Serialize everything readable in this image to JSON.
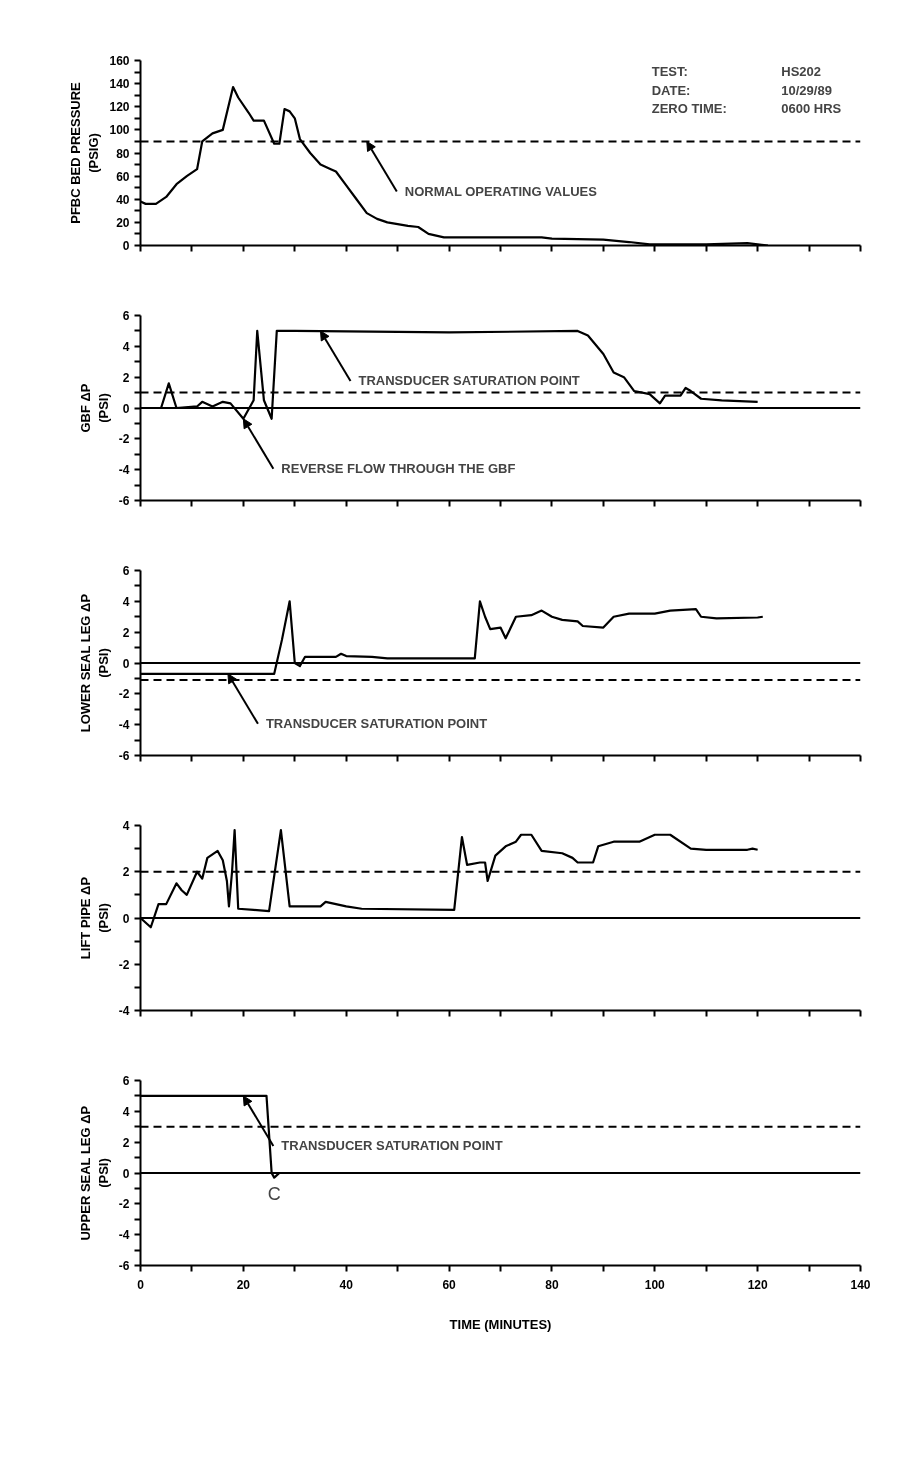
{
  "chart_data": [
    {
      "type": "line",
      "ylabel": "PFBC BED PRESSURE\n(PSIG)",
      "xlim": [
        0,
        140
      ],
      "ylim": [
        0,
        160
      ],
      "xticks": [
        0,
        {
          "value": 10,
          "label": null
        },
        20,
        {
          "value": 30,
          "label": null
        },
        40,
        {
          "value": 50,
          "label": null
        },
        60,
        {
          "value": 70,
          "label": null
        },
        80,
        {
          "value": 90,
          "label": null
        },
        100,
        {
          "value": 110,
          "label": null
        },
        120,
        {
          "value": 130,
          "label": null
        },
        140
      ],
      "yticks": [
        0,
        {
          "value": 10,
          "label": null
        },
        20,
        {
          "value": 30,
          "label": null
        },
        40,
        {
          "value": 50,
          "label": null
        },
        60,
        {
          "value": 70,
          "label": null
        },
        80,
        {
          "value": 90,
          "label": null
        },
        100,
        {
          "value": 110,
          "label": null
        },
        120,
        {
          "value": 130,
          "label": null
        },
        140,
        {
          "value": 150,
          "label": null
        },
        160
      ],
      "tick_labels": "y",
      "grid": false,
      "line_style": "solid",
      "marker": "none",
      "series": [
        {
          "color": "#000000",
          "x": [
            0,
            1,
            3,
            5,
            7,
            9,
            11,
            12,
            14,
            16,
            18,
            19,
            21,
            22,
            24,
            26,
            27,
            28,
            29,
            30,
            31,
            33,
            35,
            37,
            38,
            40,
            42,
            44,
            46,
            48,
            52,
            54,
            56,
            59,
            78,
            80,
            90,
            95,
            99,
            110,
            118,
            120,
            122
          ],
          "values": [
            38,
            36,
            36,
            42,
            53,
            60,
            66,
            90,
            97,
            100,
            137,
            128,
            115,
            108,
            108,
            88,
            88,
            118,
            116,
            110,
            92,
            80,
            70,
            66,
            64,
            52,
            40,
            28,
            23,
            20,
            17,
            16,
            10,
            7,
            7,
            6,
            5,
            3,
            1,
            1,
            2,
            1,
            0
          ]
        }
      ],
      "ref_lines": [
        {
          "axis": "y",
          "value": 90,
          "label": null,
          "line_style": "dashed",
          "color": "#000000"
        }
      ],
      "annotations": [
        {
          "text": "NORMAL OPERATING VALUES",
          "x": 44,
          "y": 90
        },
        "TEST:",
        "HS202",
        "DATE:",
        "10/29/89",
        "ZERO TIME:",
        "0600 HRS"
      ]
    },
    {
      "type": "line",
      "ylabel": "GBF ΔP\n(PSI)",
      "xlim": [
        0,
        140
      ],
      "ylim": [
        -6,
        6
      ],
      "xticks": [
        0,
        {
          "value": 10,
          "label": null
        },
        20,
        {
          "value": 30,
          "label": null
        },
        40,
        {
          "value": 50,
          "label": null
        },
        60,
        {
          "value": 70,
          "label": null
        },
        80,
        {
          "value": 90,
          "label": null
        },
        100,
        {
          "value": 110,
          "label": null
        },
        120,
        {
          "value": 130,
          "label": null
        },
        140
      ],
      "yticks": [
        -6,
        {
          "value": -5,
          "label": null
        },
        -4,
        {
          "value": -3,
          "label": null
        },
        -2,
        {
          "value": -1,
          "label": null
        },
        0,
        {
          "value": 1,
          "label": null
        },
        2,
        {
          "value": 3,
          "label": null
        },
        4,
        {
          "value": 5,
          "label": null
        },
        6
      ],
      "tick_labels": "y",
      "grid": false,
      "line_style": "solid",
      "marker": "none",
      "series": [
        {
          "color": "#000000",
          "x": [
            0,
            4,
            5.5,
            7,
            11,
            12,
            14,
            16,
            17.5,
            20,
            22,
            22.7,
            24,
            25.5,
            26.5,
            30,
            60,
            85,
            87,
            90,
            92,
            94,
            96,
            99,
            101,
            102,
            105,
            106,
            107,
            109,
            113,
            120
          ],
          "values": [
            0,
            0,
            1.6,
            0,
            0.1,
            0.4,
            0.1,
            0.4,
            0.3,
            -0.7,
            0.5,
            5,
            0.5,
            -0.7,
            5,
            5,
            4.9,
            5,
            4.7,
            3.5,
            2.3,
            2,
            1.1,
            0.9,
            0.3,
            0.8,
            0.8,
            1.3,
            1.1,
            0.6,
            0.5,
            0.4
          ]
        }
      ],
      "ref_lines": [
        {
          "axis": "y",
          "value": 0,
          "label": null,
          "line_style": "solid",
          "color": "#000000"
        },
        {
          "axis": "y",
          "value": 1,
          "label": null,
          "line_style": "dashed",
          "color": "#000000"
        }
      ],
      "annotations": [
        {
          "text": "TRANSDUCER SATURATION POINT",
          "x": 35,
          "y": 5
        },
        {
          "text": "REVERSE FLOW THROUGH THE GBF",
          "x": 20,
          "y": -0.7
        }
      ]
    },
    {
      "type": "line",
      "ylabel": "LOWER SEAL LEG ΔP\n(PSI)",
      "xlim": [
        0,
        140
      ],
      "ylim": [
        -6,
        6
      ],
      "xticks": [
        0,
        {
          "value": 10,
          "label": null
        },
        20,
        {
          "value": 30,
          "label": null
        },
        40,
        {
          "value": 50,
          "label": null
        },
        60,
        {
          "value": 70,
          "label": null
        },
        80,
        {
          "value": 90,
          "label": null
        },
        100,
        {
          "value": 110,
          "label": null
        },
        120,
        {
          "value": 130,
          "label": null
        },
        140
      ],
      "yticks": [
        -6,
        {
          "value": -5,
          "label": null
        },
        -4,
        {
          "value": -3,
          "label": null
        },
        -2,
        {
          "value": -1,
          "label": null
        },
        0,
        {
          "value": 1,
          "label": null
        },
        2,
        {
          "value": 3,
          "label": null
        },
        4,
        {
          "value": 5,
          "label": null
        },
        6
      ],
      "tick_labels": "y",
      "grid": false,
      "line_style": "solid",
      "marker": "none",
      "series": [
        {
          "color": "#000000",
          "x": [
            0,
            26,
            27.5,
            29,
            30,
            31,
            32,
            38,
            39,
            40,
            45,
            48,
            65,
            66,
            67,
            68,
            70,
            71,
            73,
            76,
            78,
            80,
            82,
            85,
            86,
            90,
            92,
            95,
            100,
            103,
            108,
            109,
            112,
            120,
            121
          ],
          "values": [
            -0.7,
            -0.7,
            1.5,
            4,
            0,
            -0.2,
            0.4,
            0.4,
            0.6,
            0.45,
            0.4,
            0.3,
            0.3,
            4,
            3,
            2.2,
            2.3,
            1.6,
            3,
            3.1,
            3.4,
            3,
            2.8,
            2.7,
            2.4,
            2.3,
            3,
            3.2,
            3.2,
            3.4,
            3.5,
            3,
            2.9,
            2.95,
            3
          ]
        }
      ],
      "ref_lines": [
        {
          "axis": "y",
          "value": 0,
          "label": null,
          "line_style": "solid",
          "color": "#000000"
        },
        {
          "axis": "y",
          "value": -1.1,
          "label": null,
          "line_style": "dashed",
          "color": "#000000"
        }
      ],
      "annotations": [
        {
          "text": "TRANSDUCER SATURATION POINT",
          "x": 17,
          "y": -0.7
        }
      ]
    },
    {
      "type": "line",
      "ylabel": "LIFT PIPE ΔP\n(PSI)",
      "xlim": [
        0,
        140
      ],
      "ylim": [
        -4,
        4
      ],
      "xticks": [
        0,
        {
          "value": 10,
          "label": null
        },
        20,
        {
          "value": 30,
          "label": null
        },
        40,
        {
          "value": 50,
          "label": null
        },
        60,
        {
          "value": 70,
          "label": null
        },
        80,
        {
          "value": 90,
          "label": null
        },
        100,
        {
          "value": 110,
          "label": null
        },
        120,
        {
          "value": 130,
          "label": null
        },
        140
      ],
      "yticks": [
        -4,
        {
          "value": -3,
          "label": null
        },
        -2,
        {
          "value": -1,
          "label": null
        },
        0,
        {
          "value": 1,
          "label": null
        },
        2,
        {
          "value": 3,
          "label": null
        },
        4
      ],
      "tick_labels": "y",
      "grid": false,
      "line_style": "solid",
      "marker": "none",
      "series": [
        {
          "color": "#000000",
          "x": [
            0,
            2,
            3.5,
            5,
            7,
            8,
            9,
            11,
            12,
            13,
            15,
            16,
            16.8,
            17.2,
            17.8,
            18.3,
            19,
            22,
            25,
            27.3,
            29,
            35,
            36,
            38,
            40,
            43,
            61,
            62.5,
            63.5,
            66,
            67,
            67.5,
            69,
            71,
            73,
            74,
            76,
            78,
            82,
            84,
            85,
            88,
            89,
            92,
            97,
            100,
            103,
            107,
            110,
            118,
            119,
            120
          ],
          "values": [
            0,
            -0.4,
            0.6,
            0.6,
            1.5,
            1.2,
            1.0,
            2.0,
            1.7,
            2.6,
            2.9,
            2.5,
            1.6,
            0.5,
            2,
            3.8,
            0.4,
            0.35,
            0.3,
            3.8,
            0.5,
            0.5,
            0.7,
            0.6,
            0.5,
            0.4,
            0.35,
            3.5,
            2.3,
            2.4,
            2.4,
            1.6,
            2.7,
            3.1,
            3.3,
            3.6,
            3.6,
            2.9,
            2.8,
            2.6,
            2.4,
            2.4,
            3.1,
            3.3,
            3.3,
            3.6,
            3.6,
            3.0,
            2.95,
            2.95,
            3.0,
            2.95
          ]
        }
      ],
      "ref_lines": [
        {
          "axis": "y",
          "value": 0,
          "label": null,
          "line_style": "solid",
          "color": "#000000"
        },
        {
          "axis": "y",
          "value": 2,
          "label": null,
          "line_style": "dashed",
          "color": "#000000"
        }
      ]
    },
    {
      "type": "line",
      "ylabel": "UPPER SEAL LEG ΔP\n(PSI)",
      "xlabel": "TIME (MINUTES)",
      "xlim": [
        0,
        140
      ],
      "ylim": [
        -6,
        6
      ],
      "xticks": [
        0,
        {
          "value": 10,
          "label": null
        },
        20,
        {
          "value": 30,
          "label": null
        },
        40,
        {
          "value": 50,
          "label": null
        },
        60,
        {
          "value": 70,
          "label": null
        },
        80,
        {
          "value": 90,
          "label": null
        },
        100,
        {
          "value": 110,
          "label": null
        },
        120,
        {
          "value": 130,
          "label": null
        },
        140
      ],
      "yticks": [
        -6,
        {
          "value": -5,
          "label": null
        },
        -4,
        {
          "value": -3,
          "label": null
        },
        -2,
        {
          "value": -1,
          "label": null
        },
        0,
        {
          "value": 1,
          "label": null
        },
        2,
        {
          "value": 3,
          "label": null
        },
        4,
        {
          "value": 5,
          "label": null
        },
        6
      ],
      "grid": false,
      "line_style": "solid",
      "marker": "none",
      "series": [
        {
          "color": "#000000",
          "x": [
            0,
            24.5,
            25.5,
            26,
            27,
            29
          ],
          "values": [
            5,
            5,
            0,
            -0.3,
            0,
            0
          ]
        }
      ],
      "ref_lines": [
        {
          "axis": "y",
          "value": 0,
          "label": null,
          "line_style": "solid",
          "color": "#000000"
        },
        {
          "axis": "y",
          "value": 3,
          "label": null,
          "line_style": "dashed",
          "color": "#000000"
        }
      ],
      "annotations": [
        {
          "text": "TRANSDUCER SATURATION POINT",
          "x": 20,
          "y": 5
        },
        {
          "text": "C",
          "x": 26,
          "y": -0.3
        }
      ]
    }
  ]
}
